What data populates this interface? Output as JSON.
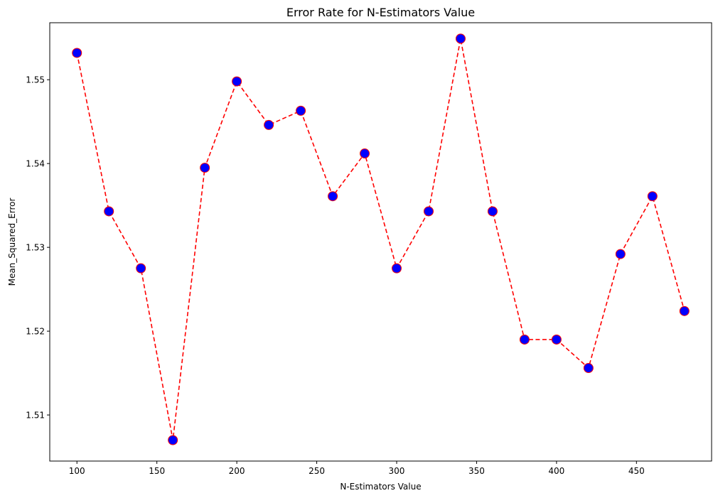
{
  "chart_data": {
    "type": "line",
    "title": "Error Rate for N-Estimators Value",
    "xlabel": "N-Estimators Value",
    "ylabel": "Mean_Squared_Error",
    "xlim": [
      83,
      497
    ],
    "ylim": [
      1.5045,
      1.5568
    ],
    "xticks": [
      100,
      150,
      200,
      250,
      300,
      350,
      400,
      450
    ],
    "yticks": [
      1.51,
      1.52,
      1.53,
      1.54,
      1.55
    ],
    "ytick_labels": [
      "1.51",
      "1.52",
      "1.53",
      "1.54",
      "1.55"
    ],
    "grid": false,
    "line_style": "dashed",
    "line_color": "#ff0000",
    "marker_face_color": "#0000ff",
    "marker_edge_color": "#ff0000",
    "series": [
      {
        "x": [
          100,
          120,
          140,
          160,
          180,
          200,
          220,
          240,
          260,
          280,
          300,
          320,
          340,
          360,
          380,
          400,
          420,
          440,
          460,
          480
        ],
        "y": [
          1.5532,
          1.5343,
          1.5275,
          1.507,
          1.5395,
          1.5498,
          1.5446,
          1.5463,
          1.5361,
          1.5412,
          1.5275,
          1.5343,
          1.5549,
          1.5343,
          1.519,
          1.519,
          1.5156,
          1.5292,
          1.5361,
          1.5224
        ]
      }
    ]
  }
}
